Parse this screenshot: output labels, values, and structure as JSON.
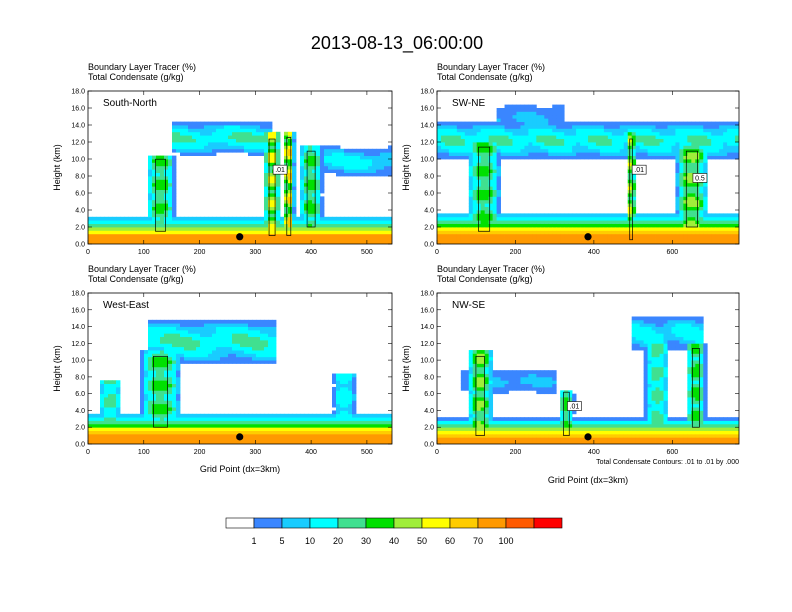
{
  "figure_title": "2013-08-13_06:00:00",
  "x_axis_label": "Grid Point (dx=3km)",
  "footnote": "Total Condensate Contours: .01 to .01 by .000",
  "chart_data": [
    {
      "type": "heatmap",
      "panel": "South-North",
      "subtitle_1": "Boundary Layer Tracer   (%)",
      "subtitle_2": "Total Condensate   (g/kg)",
      "ylabel": "Height (km)",
      "xlabel": "",
      "xlim": [
        0,
        545
      ],
      "ylim": [
        0,
        18
      ],
      "x_ticks": [
        "0",
        "100",
        "200",
        "300",
        "400",
        "500"
      ],
      "y_ticks": [
        "0.0",
        "2.0",
        "4.0",
        "6.0",
        "8.0",
        "10.0",
        "12.0",
        "14.0",
        "16.0",
        "18.0"
      ],
      "contour_labels": [
        ".01"
      ],
      "marker_x": 272,
      "boundary_layer_top_km": 2.6,
      "plumes": [
        {
          "x": 130,
          "base_km": 1.5,
          "top_km": 10.5,
          "width": 50,
          "peak_pct": 40
        },
        {
          "x": 330,
          "base_km": 1.0,
          "top_km": 13.0,
          "width": 30,
          "peak_pct": 60
        },
        {
          "x": 360,
          "base_km": 1.0,
          "top_km": 13.2,
          "width": 20,
          "peak_pct": 70
        },
        {
          "x": 400,
          "base_km": 2.0,
          "top_km": 11.5,
          "width": 40,
          "peak_pct": 40
        }
      ],
      "anvils": [
        {
          "x1": 150,
          "x2": 330,
          "base_km": 10.5,
          "top_km": 14.5,
          "peak_pct": 30
        },
        {
          "x1": 420,
          "x2": 545,
          "base_km": 8.0,
          "top_km": 11.5,
          "peak_pct": 20
        }
      ]
    },
    {
      "type": "heatmap",
      "panel": "SW-NE",
      "subtitle_1": "Boundary Layer Tracer   (%)",
      "subtitle_2": "Total Condensate   (g/kg)",
      "ylabel": "Height (km)",
      "xlabel": "",
      "xlim": [
        0,
        770
      ],
      "ylim": [
        0,
        18
      ],
      "x_ticks": [
        "0",
        "200",
        "400",
        "600"
      ],
      "y_ticks": [
        "0.0",
        "2.0",
        "4.0",
        "6.0",
        "8.0",
        "10.0",
        "12.0",
        "14.0",
        "16.0",
        "18.0"
      ],
      "contour_labels": [
        ".01",
        "0.5"
      ],
      "marker_x": 385,
      "boundary_layer_top_km": 3.0,
      "plumes": [
        {
          "x": 120,
          "base_km": 1.5,
          "top_km": 12.0,
          "width": 80,
          "peak_pct": 40
        },
        {
          "x": 495,
          "base_km": 0.5,
          "top_km": 13.0,
          "width": 20,
          "peak_pct": 60
        },
        {
          "x": 650,
          "base_km": 2.0,
          "top_km": 11.5,
          "width": 80,
          "peak_pct": 50
        }
      ],
      "anvils": [
        {
          "x1": 0,
          "x2": 770,
          "base_km": 10.0,
          "top_km": 14.5,
          "peak_pct": 30
        },
        {
          "x1": 150,
          "x2": 320,
          "base_km": 13.0,
          "top_km": 16.5,
          "peak_pct": 10
        }
      ]
    },
    {
      "type": "heatmap",
      "panel": "West-East",
      "subtitle_1": "Boundary Layer Tracer   (%)",
      "subtitle_2": "Total Condensate   (g/kg)",
      "ylabel": "Height (km)",
      "xlabel": "Grid Point (dx=3km)",
      "xlim": [
        0,
        545
      ],
      "ylim": [
        0,
        18
      ],
      "x_ticks": [
        "0",
        "100",
        "200",
        "300",
        "400",
        "500"
      ],
      "y_ticks": [
        "0.0",
        "2.0",
        "4.0",
        "6.0",
        "8.0",
        "10.0",
        "12.0",
        "14.0",
        "16.0",
        "18.0"
      ],
      "contour_labels": [],
      "marker_x": 272,
      "boundary_layer_top_km": 3.0,
      "plumes": [
        {
          "x": 40,
          "base_km": 2.0,
          "top_km": 7.5,
          "width": 40,
          "peak_pct": 30
        },
        {
          "x": 130,
          "base_km": 2.0,
          "top_km": 11.0,
          "width": 70,
          "peak_pct": 40
        },
        {
          "x": 460,
          "base_km": 2.0,
          "top_km": 8.5,
          "width": 40,
          "peak_pct": 20
        }
      ],
      "anvils": [
        {
          "x1": 110,
          "x2": 340,
          "base_km": 9.5,
          "top_km": 15.0,
          "peak_pct": 30
        }
      ]
    },
    {
      "type": "heatmap",
      "panel": "NW-SE",
      "subtitle_1": "Boundary Layer Tracer   (%)",
      "subtitle_2": "Total Condensate   (g/kg)",
      "ylabel": "Height (km)",
      "xlabel": "Grid Point (dx=3km)",
      "xlim": [
        0,
        770
      ],
      "ylim": [
        0,
        18
      ],
      "x_ticks": [
        "0",
        "200",
        "400",
        "600"
      ],
      "y_ticks": [
        "0.0",
        "2.0",
        "4.0",
        "6.0",
        "8.0",
        "10.0",
        "12.0",
        "14.0",
        "16.0",
        "18.0"
      ],
      "contour_labels": [
        ".01"
      ],
      "marker_x": 385,
      "boundary_layer_top_km": 2.5,
      "plumes": [
        {
          "x": 110,
          "base_km": 1.0,
          "top_km": 11.0,
          "width": 60,
          "peak_pct": 50
        },
        {
          "x": 330,
          "base_km": 1.0,
          "top_km": 6.5,
          "width": 40,
          "peak_pct": 40
        },
        {
          "x": 560,
          "base_km": 2.0,
          "top_km": 13.0,
          "width": 60,
          "peak_pct": 30
        },
        {
          "x": 660,
          "base_km": 2.0,
          "top_km": 12.0,
          "width": 50,
          "peak_pct": 40
        }
      ],
      "anvils": [
        {
          "x1": 500,
          "x2": 680,
          "base_km": 11.0,
          "top_km": 15.5,
          "peak_pct": 20
        },
        {
          "x1": 60,
          "x2": 300,
          "base_km": 6.0,
          "top_km": 9.0,
          "peak_pct": 10
        }
      ]
    }
  ],
  "colorbar": {
    "labels": [
      "1",
      "5",
      "10",
      "20",
      "30",
      "40",
      "50",
      "60",
      "70",
      "100"
    ],
    "colors": [
      "#ffffff",
      "#3a86ff",
      "#19ccff",
      "#00ffff",
      "#40e090",
      "#00e000",
      "#a0ee3a",
      "#ffff00",
      "#ffcc00",
      "#ff9900",
      "#ff5a00",
      "#ff0000"
    ]
  },
  "colors": {
    "contour": "#000000",
    "marker": "#000000"
  }
}
